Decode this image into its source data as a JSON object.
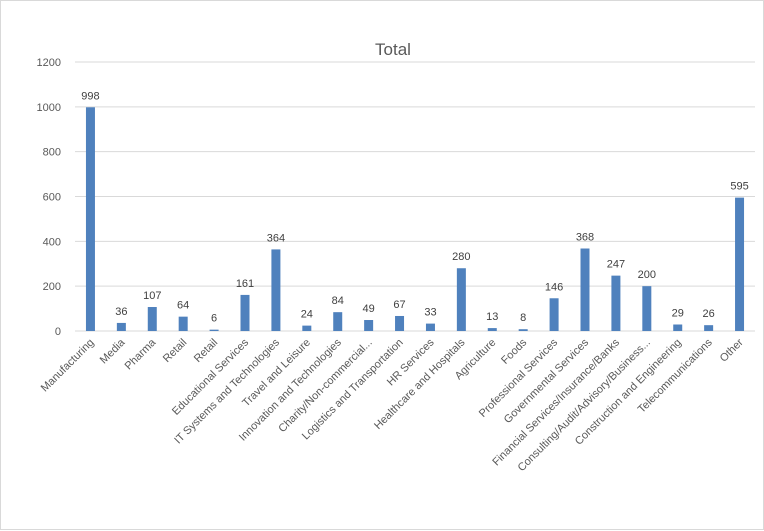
{
  "chart_data": {
    "type": "bar",
    "title": "Total",
    "xlabel": "",
    "ylabel": "",
    "ylim": [
      0,
      1200
    ],
    "yticks": [
      0,
      200,
      400,
      600,
      800,
      1000,
      1200
    ],
    "grid": true,
    "legend": "none",
    "categories": [
      "Manufacturing",
      "Media",
      "Pharma",
      "Retail",
      "Retail",
      "Educational Services",
      "IT Systems and Technologies",
      "Travel and Leisure",
      "Innovation and Technologies",
      "Charity/Non-commercial...",
      "Logistics and Transportation",
      "HR Services",
      "Healthcare and Hospitals",
      "Agriculture",
      "Foods",
      "Professional Services",
      "Governmental Services",
      "Financial Services/Insurance/Banks",
      "Consulting/Audit/Advisory/Business...",
      "Construction and Engineering",
      "Telecommunications",
      "Other"
    ],
    "values": [
      998,
      36,
      107,
      64,
      6,
      161,
      364,
      24,
      84,
      49,
      67,
      33,
      280,
      13,
      8,
      146,
      368,
      247,
      200,
      29,
      26,
      595
    ],
    "bar_color": "#4f81bd"
  }
}
